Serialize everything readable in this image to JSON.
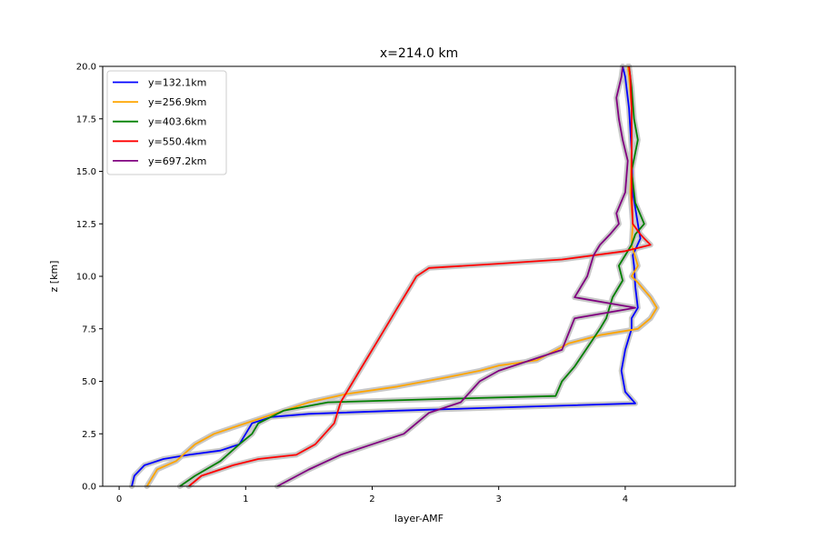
{
  "chart_data": {
    "type": "line",
    "title": "x=214.0 km",
    "xlabel": "layer-AMF",
    "ylabel": "z [km]",
    "xlim": [
      -0.13,
      4.87
    ],
    "ylim": [
      0,
      20
    ],
    "xticks": [
      0,
      1,
      2,
      3,
      4
    ],
    "yticks": [
      0.0,
      2.5,
      5.0,
      7.5,
      10.0,
      12.5,
      15.0,
      17.5,
      20.0
    ],
    "xtick_labels": [
      "0",
      "1",
      "2",
      "3",
      "4"
    ],
    "ytick_labels": [
      "0.0",
      "2.5",
      "5.0",
      "7.5",
      "10.0",
      "12.5",
      "15.0",
      "17.5",
      "20.0"
    ],
    "grid": false,
    "legend_position": "top-left",
    "uncertainty_band_color": "#c8c8c8",
    "series": [
      {
        "name": "y=132.1km",
        "color": "#0000ff",
        "x": [
          0.1,
          0.12,
          0.2,
          0.35,
          0.55,
          0.8,
          0.95,
          1.0,
          1.05,
          1.2,
          1.5,
          2.2,
          3.0,
          4.08,
          4.0,
          3.97,
          4.0,
          4.05,
          4.05,
          4.1,
          4.08,
          4.07,
          4.06,
          4.12,
          4.1,
          4.06,
          4.05,
          4.03,
          4.0,
          3.98
        ],
        "y": [
          0.0,
          0.5,
          1.0,
          1.3,
          1.5,
          1.7,
          2.0,
          2.5,
          3.0,
          3.3,
          3.45,
          3.6,
          3.75,
          3.95,
          4.5,
          5.5,
          6.5,
          7.5,
          8.0,
          8.5,
          9.5,
          10.5,
          11.0,
          11.8,
          12.5,
          14.0,
          16.0,
          18.0,
          19.5,
          20.0
        ]
      },
      {
        "name": "y=256.9km",
        "color": "#ffa500",
        "x": [
          0.22,
          0.3,
          0.45,
          0.6,
          0.75,
          0.95,
          1.2,
          1.5,
          1.8,
          2.2,
          2.6,
          2.85,
          3.0,
          3.3,
          3.55,
          3.8,
          4.1,
          4.2,
          4.25,
          4.2,
          4.1,
          4.05,
          4.1,
          4.05,
          4.06,
          4.04,
          4.05,
          4.05,
          4.03,
          4.02
        ],
        "y": [
          0.0,
          0.8,
          1.2,
          2.0,
          2.5,
          2.9,
          3.4,
          4.0,
          4.4,
          4.75,
          5.2,
          5.5,
          5.75,
          6.0,
          6.8,
          7.2,
          7.5,
          8.0,
          8.5,
          9.0,
          9.7,
          10.0,
          10.5,
          11.5,
          12.5,
          14.0,
          16.0,
          18.0,
          19.5,
          20.0
        ]
      },
      {
        "name": "y=403.6km",
        "color": "#008000",
        "x": [
          0.48,
          0.6,
          0.8,
          0.95,
          1.05,
          1.1,
          1.3,
          1.65,
          2.5,
          3.45,
          3.5,
          3.6,
          3.8,
          3.85,
          3.9,
          3.98,
          3.95,
          4.0,
          4.05,
          4.08,
          4.15,
          4.08,
          4.05,
          4.1,
          4.07,
          4.05,
          4.03
        ],
        "y": [
          0.0,
          0.5,
          1.2,
          2.0,
          2.5,
          3.0,
          3.6,
          4.0,
          4.15,
          4.3,
          5.0,
          5.7,
          7.5,
          8.0,
          9.0,
          9.8,
          10.5,
          11.0,
          11.5,
          12.0,
          12.5,
          13.5,
          15.0,
          16.5,
          17.5,
          19.0,
          20.0
        ]
      },
      {
        "name": "y=550.4km",
        "color": "#ff0000",
        "x": [
          0.55,
          0.65,
          0.9,
          1.1,
          1.4,
          1.55,
          1.7,
          1.75,
          1.8,
          1.9,
          2.0,
          2.05,
          2.1,
          2.15,
          2.2,
          2.25,
          2.3,
          2.35,
          2.45,
          3.0,
          3.5,
          4.0,
          4.2,
          4.15,
          4.12,
          4.06,
          4.05,
          4.05,
          4.05,
          4.04,
          4.03
        ],
        "y": [
          0.0,
          0.5,
          1.0,
          1.3,
          1.5,
          2.0,
          3.0,
          4.0,
          4.5,
          5.5,
          6.5,
          7.0,
          7.5,
          8.0,
          8.5,
          9.0,
          9.5,
          10.0,
          10.4,
          10.6,
          10.8,
          11.2,
          11.5,
          11.8,
          12.0,
          12.5,
          14.0,
          16.0,
          18.0,
          19.5,
          20.0
        ]
      },
      {
        "name": "y=697.2km",
        "color": "#800080",
        "x": [
          1.25,
          1.5,
          1.75,
          2.0,
          2.25,
          2.45,
          2.7,
          2.85,
          3.0,
          3.25,
          3.5,
          3.6,
          4.08,
          3.6,
          3.7,
          3.75,
          3.8,
          3.88,
          3.95,
          3.93,
          4.0,
          4.02,
          3.98,
          3.95,
          3.93,
          3.97,
          3.98
        ],
        "y": [
          0.0,
          0.8,
          1.5,
          2.0,
          2.5,
          3.5,
          4.0,
          5.0,
          5.5,
          6.0,
          6.5,
          8.0,
          8.5,
          9.0,
          10.0,
          11.0,
          11.5,
          12.0,
          12.5,
          13.0,
          14.0,
          15.5,
          16.5,
          17.5,
          18.5,
          19.5,
          20.0
        ]
      }
    ]
  }
}
